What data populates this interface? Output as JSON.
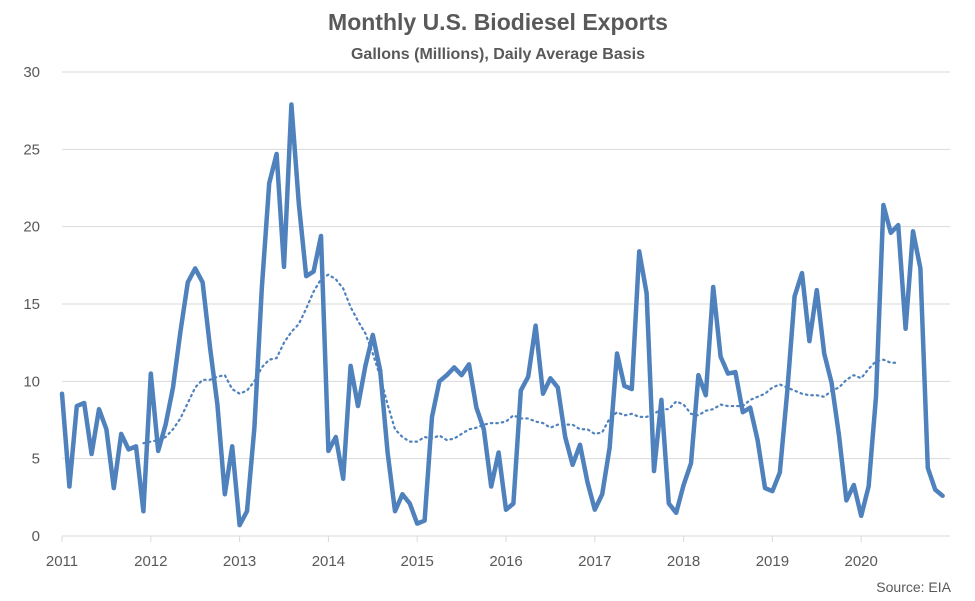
{
  "chart_data": {
    "type": "line",
    "title": "Monthly U.S. Biodiesel Exports",
    "subtitle": "Gallons (Millions), Daily Average Basis",
    "source": "Source: EIA",
    "ylim": [
      0,
      30
    ],
    "yticks": [
      0,
      5,
      10,
      15,
      20,
      25,
      30
    ],
    "xlim": [
      2011,
      2021
    ],
    "xticks": [
      2011,
      2012,
      2013,
      2014,
      2015,
      2016,
      2017,
      2018,
      2019,
      2020
    ],
    "grid": true,
    "legend": "none",
    "colors": {
      "series": "#4f81bd",
      "grid": "#d9d9d9",
      "text": "#595959"
    },
    "series": [
      {
        "style": "solid",
        "x_start": "2011-01",
        "frequency": "monthly",
        "values": [
          9.2,
          3.2,
          8.4,
          8.6,
          5.3,
          8.2,
          6.9,
          3.1,
          6.6,
          5.6,
          5.8,
          1.6,
          10.5,
          5.5,
          7.2,
          9.6,
          13.2,
          16.4,
          17.3,
          16.4,
          12.2,
          8.5,
          2.7,
          5.8,
          0.7,
          1.6,
          7.0,
          16.0,
          22.8,
          24.7,
          17.4,
          27.9,
          21.5,
          16.8,
          17.1,
          19.4,
          5.5,
          6.4,
          3.7,
          11.0,
          8.4,
          11.0,
          13.0,
          10.7,
          5.4,
          1.6,
          2.7,
          2.1,
          0.8,
          1.0,
          7.7,
          10.0,
          10.4,
          10.9,
          10.4,
          11.1,
          8.3,
          6.9,
          3.2,
          5.4,
          1.7,
          2.1,
          9.4,
          10.3,
          13.6,
          9.2,
          10.2,
          9.6,
          6.4,
          4.6,
          5.9,
          3.5,
          1.7,
          2.7,
          5.7,
          11.8,
          9.7,
          9.5,
          18.4,
          15.7,
          4.2,
          8.8,
          2.1,
          1.5,
          3.3,
          4.7,
          10.4,
          9.1,
          16.1,
          11.6,
          10.5,
          10.6,
          8.0,
          8.3,
          6.2,
          3.1,
          2.9,
          4.1,
          9.3,
          15.5,
          17.0,
          12.6,
          15.9,
          11.8,
          9.9,
          6.5,
          2.3,
          3.3,
          1.3,
          3.2,
          9.0,
          21.4,
          19.6,
          20.1,
          13.4,
          19.7,
          17.3,
          4.4,
          3.0,
          2.6
        ]
      },
      {
        "style": "dotted",
        "type": "moving-average",
        "x_start": "2011-12",
        "frequency": "monthly",
        "values": [
          6.0,
          6.1,
          6.2,
          6.4,
          6.9,
          7.6,
          8.6,
          9.6,
          10.1,
          10.1,
          10.3,
          10.4,
          9.5,
          9.2,
          9.4,
          10.0,
          10.9,
          11.4,
          11.5,
          12.5,
          13.2,
          13.7,
          14.7,
          15.8,
          16.6,
          16.9,
          16.6,
          16.0,
          14.8,
          13.9,
          13.1,
          11.8,
          10.3,
          8.5,
          6.9,
          6.4,
          6.1,
          6.1,
          6.4,
          6.3,
          6.5,
          6.2,
          6.3,
          6.6,
          6.9,
          7.0,
          7.2,
          7.3,
          7.3,
          7.4,
          7.8,
          7.6,
          7.6,
          7.4,
          7.3,
          7.0,
          7.2,
          7.2,
          7.2,
          6.9,
          6.9,
          6.6,
          6.7,
          7.6,
          8.0,
          7.8,
          7.9,
          7.7,
          7.7,
          7.9,
          8.2,
          8.2,
          8.7,
          8.5,
          7.9,
          7.8,
          8.1,
          8.2,
          8.5,
          8.4,
          8.4,
          8.4,
          8.8,
          9.0,
          9.2,
          9.6,
          9.8,
          9.6,
          9.4,
          9.2,
          9.1,
          9.1,
          9.0,
          9.4,
          9.6,
          10.1,
          10.4,
          10.2,
          10.8,
          11.3,
          11.4,
          11.2,
          11.2
        ]
      }
    ]
  }
}
